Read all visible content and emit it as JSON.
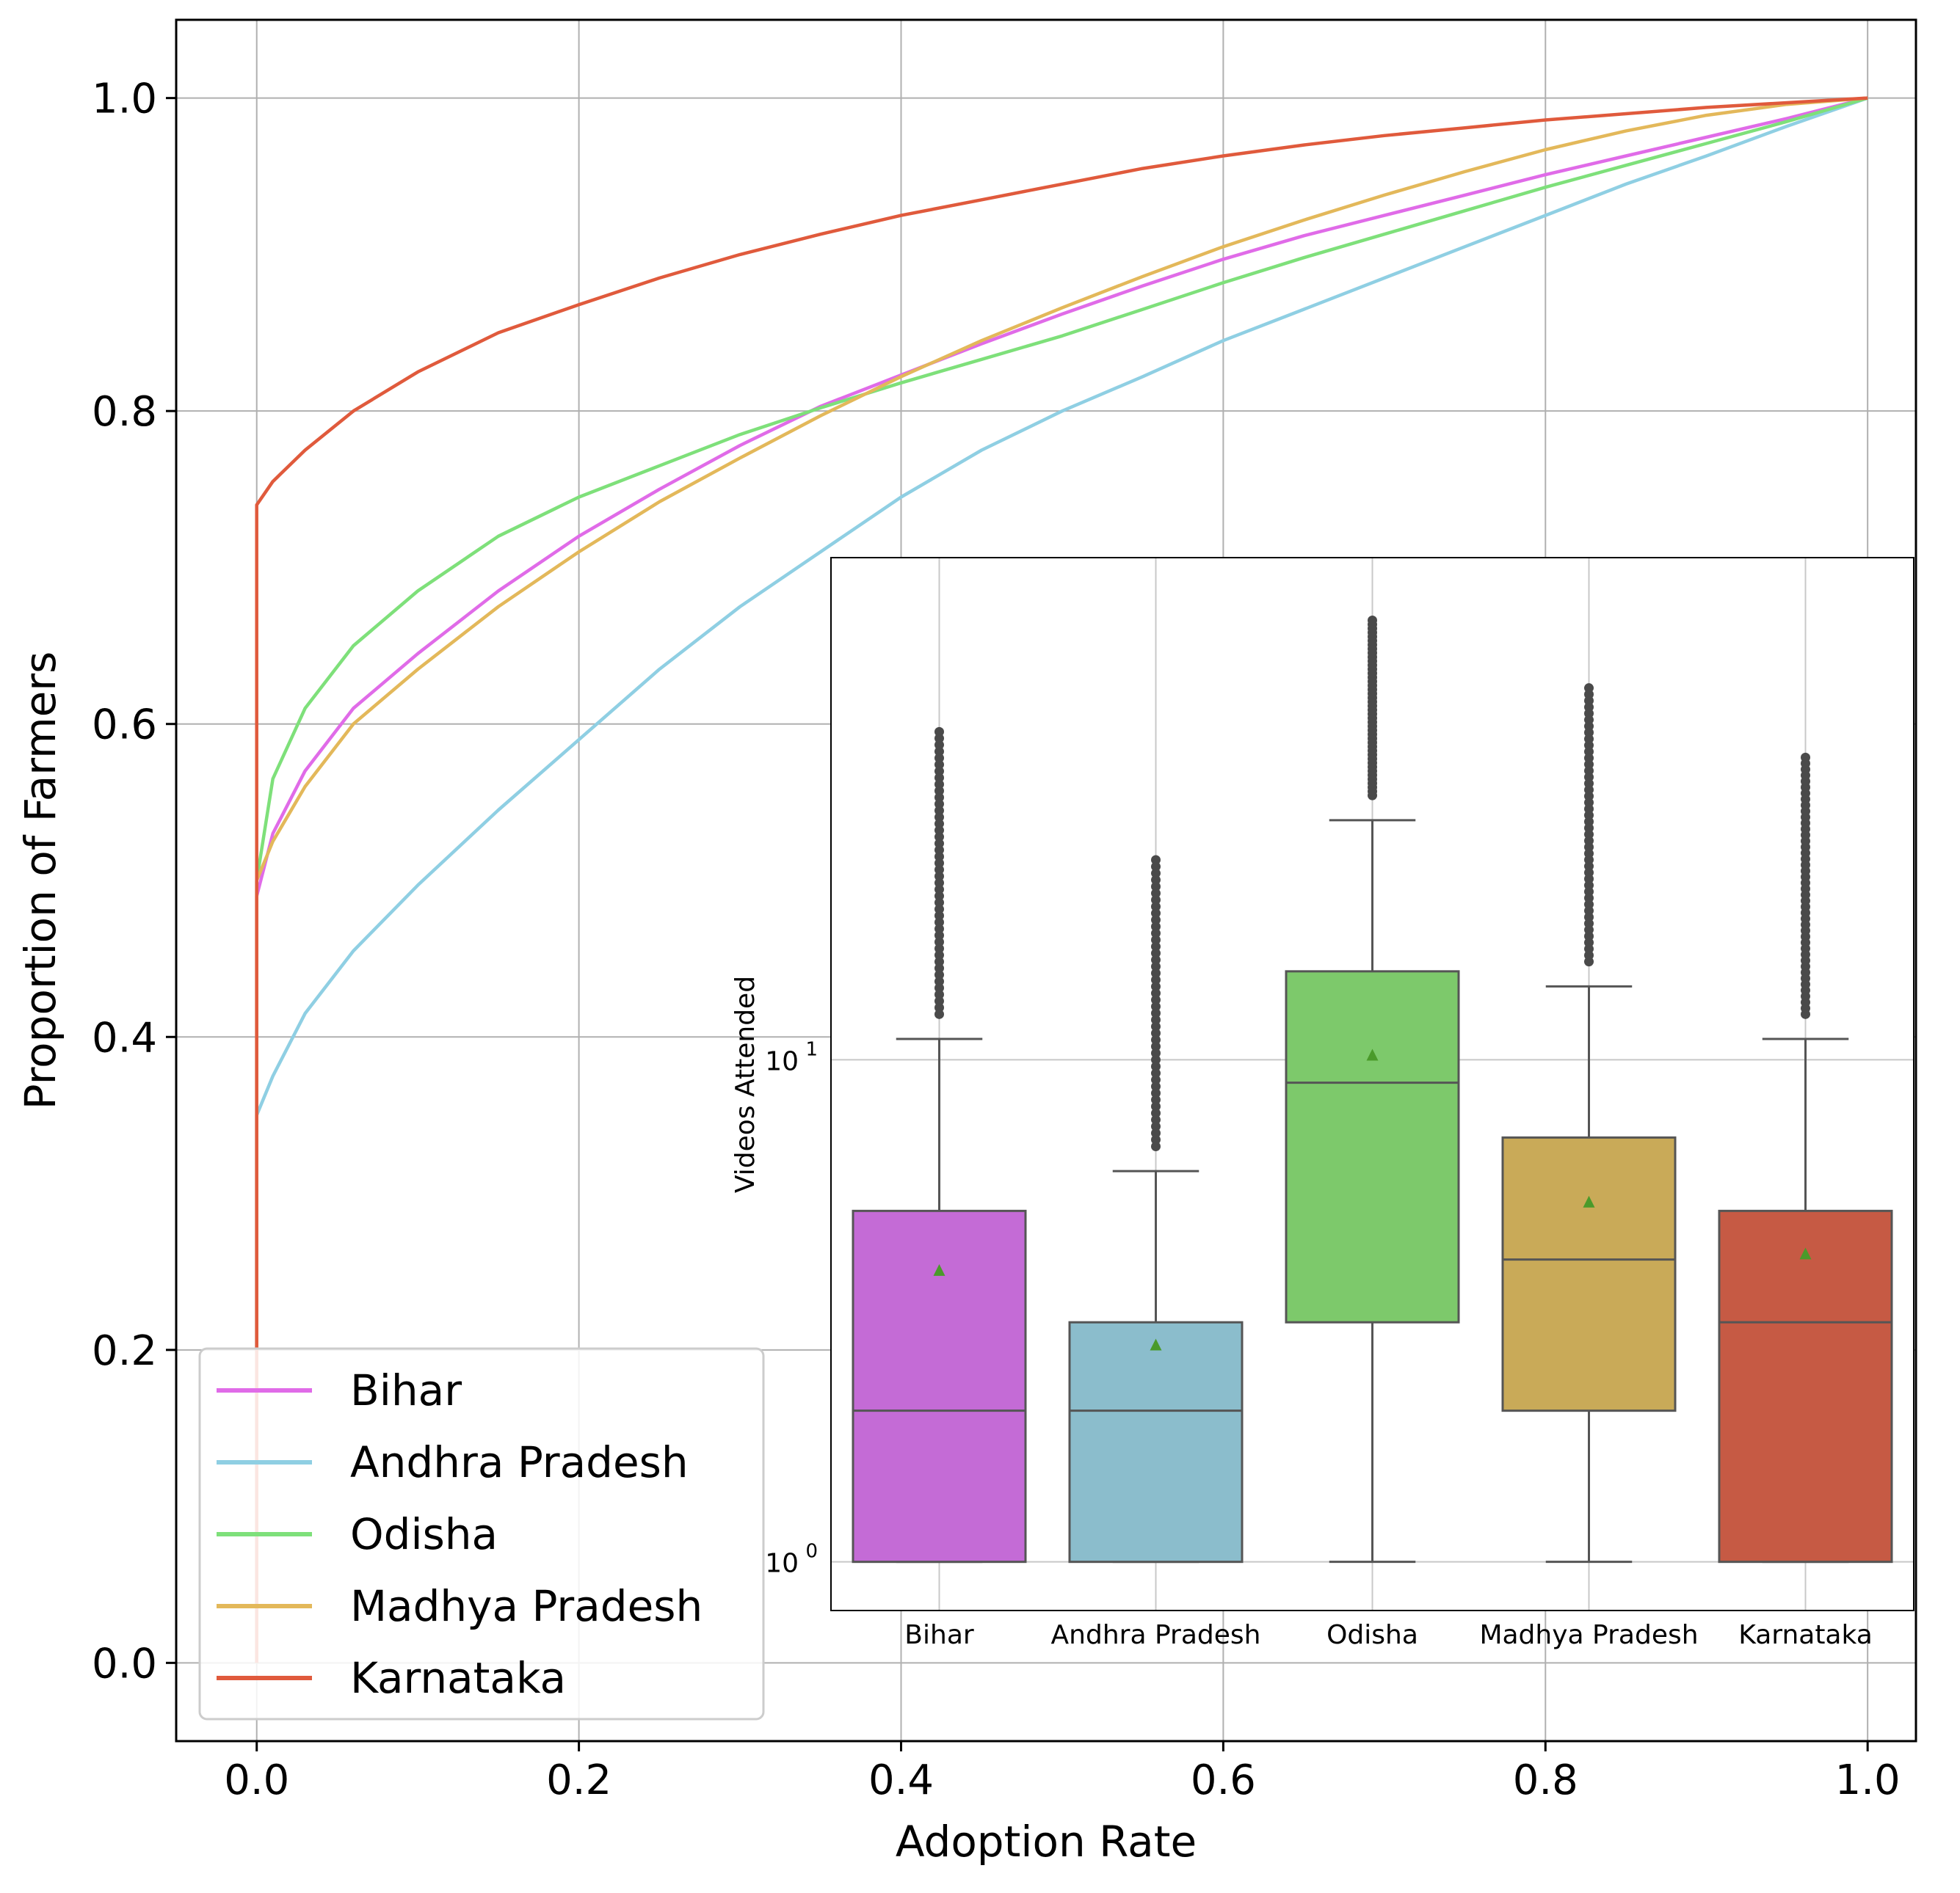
{
  "chart_data": [
    {
      "type": "line",
      "title": "",
      "xlabel": "Adoption Rate",
      "ylabel": "Proportion of Farmers",
      "xlim": [
        -0.05,
        1.03
      ],
      "ylim": [
        -0.05,
        1.05
      ],
      "xticks": [
        "0.0",
        "0.2",
        "0.4",
        "0.6",
        "0.8",
        "1.0"
      ],
      "yticks": [
        "0.0",
        "0.2",
        "0.4",
        "0.6",
        "0.8",
        "1.0"
      ],
      "grid": true,
      "legend_position": "lower-left",
      "series": [
        {
          "name": "Bihar",
          "color": "#e06be8",
          "points": [
            [
              0,
              0
            ],
            [
              0,
              0.49
            ],
            [
              0.01,
              0.53
            ],
            [
              0.03,
              0.57
            ],
            [
              0.06,
              0.61
            ],
            [
              0.1,
              0.645
            ],
            [
              0.15,
              0.685
            ],
            [
              0.2,
              0.72
            ],
            [
              0.25,
              0.75
            ],
            [
              0.3,
              0.778
            ],
            [
              0.35,
              0.803
            ],
            [
              0.4,
              0.823
            ],
            [
              0.45,
              0.843
            ],
            [
              0.5,
              0.862
            ],
            [
              0.55,
              0.88
            ],
            [
              0.6,
              0.897
            ],
            [
              0.65,
              0.912
            ],
            [
              0.7,
              0.925
            ],
            [
              0.75,
              0.938
            ],
            [
              0.8,
              0.951
            ],
            [
              0.85,
              0.963
            ],
            [
              0.9,
              0.975
            ],
            [
              0.95,
              0.987
            ],
            [
              1.0,
              1.0
            ]
          ]
        },
        {
          "name": "Andhra Pradesh",
          "color": "#8fcfe3",
          "points": [
            [
              0,
              0
            ],
            [
              0,
              0.35
            ],
            [
              0.01,
              0.375
            ],
            [
              0.03,
              0.415
            ],
            [
              0.06,
              0.455
            ],
            [
              0.1,
              0.497
            ],
            [
              0.15,
              0.545
            ],
            [
              0.2,
              0.59
            ],
            [
              0.25,
              0.635
            ],
            [
              0.3,
              0.675
            ],
            [
              0.35,
              0.71
            ],
            [
              0.4,
              0.745
            ],
            [
              0.45,
              0.775
            ],
            [
              0.5,
              0.8
            ],
            [
              0.55,
              0.822
            ],
            [
              0.6,
              0.845
            ],
            [
              0.65,
              0.865
            ],
            [
              0.7,
              0.885
            ],
            [
              0.75,
              0.905
            ],
            [
              0.8,
              0.925
            ],
            [
              0.85,
              0.945
            ],
            [
              0.9,
              0.963
            ],
            [
              0.95,
              0.982
            ],
            [
              1.0,
              1.0
            ]
          ]
        },
        {
          "name": "Odisha",
          "color": "#7ee07a",
          "points": [
            [
              0,
              0
            ],
            [
              0,
              0.5
            ],
            [
              0.01,
              0.565
            ],
            [
              0.03,
              0.61
            ],
            [
              0.06,
              0.65
            ],
            [
              0.1,
              0.685
            ],
            [
              0.15,
              0.72
            ],
            [
              0.2,
              0.745
            ],
            [
              0.25,
              0.765
            ],
            [
              0.3,
              0.785
            ],
            [
              0.35,
              0.802
            ],
            [
              0.4,
              0.818
            ],
            [
              0.45,
              0.833
            ],
            [
              0.5,
              0.848
            ],
            [
              0.55,
              0.865
            ],
            [
              0.6,
              0.882
            ],
            [
              0.65,
              0.898
            ],
            [
              0.7,
              0.913
            ],
            [
              0.75,
              0.928
            ],
            [
              0.8,
              0.943
            ],
            [
              0.85,
              0.957
            ],
            [
              0.9,
              0.971
            ],
            [
              0.95,
              0.985
            ],
            [
              1.0,
              1.0
            ]
          ]
        },
        {
          "name": "Madhya Pradesh",
          "color": "#e3b85a",
          "points": [
            [
              0,
              0
            ],
            [
              0,
              0.5
            ],
            [
              0.01,
              0.525
            ],
            [
              0.03,
              0.56
            ],
            [
              0.06,
              0.6
            ],
            [
              0.1,
              0.635
            ],
            [
              0.15,
              0.675
            ],
            [
              0.2,
              0.71
            ],
            [
              0.25,
              0.742
            ],
            [
              0.3,
              0.77
            ],
            [
              0.35,
              0.797
            ],
            [
              0.4,
              0.822
            ],
            [
              0.45,
              0.845
            ],
            [
              0.5,
              0.866
            ],
            [
              0.55,
              0.886
            ],
            [
              0.6,
              0.905
            ],
            [
              0.65,
              0.922
            ],
            [
              0.7,
              0.938
            ],
            [
              0.75,
              0.953
            ],
            [
              0.8,
              0.967
            ],
            [
              0.85,
              0.979
            ],
            [
              0.9,
              0.989
            ],
            [
              0.95,
              0.996
            ],
            [
              1.0,
              1.0
            ]
          ]
        },
        {
          "name": "Karnataka",
          "color": "#e05a3c",
          "points": [
            [
              0,
              0
            ],
            [
              0,
              0.74
            ],
            [
              0.01,
              0.755
            ],
            [
              0.03,
              0.775
            ],
            [
              0.06,
              0.8
            ],
            [
              0.1,
              0.825
            ],
            [
              0.15,
              0.85
            ],
            [
              0.2,
              0.868
            ],
            [
              0.25,
              0.885
            ],
            [
              0.3,
              0.9
            ],
            [
              0.35,
              0.913
            ],
            [
              0.4,
              0.925
            ],
            [
              0.45,
              0.935
            ],
            [
              0.5,
              0.945
            ],
            [
              0.55,
              0.955
            ],
            [
              0.6,
              0.963
            ],
            [
              0.65,
              0.97
            ],
            [
              0.7,
              0.976
            ],
            [
              0.75,
              0.981
            ],
            [
              0.8,
              0.986
            ],
            [
              0.85,
              0.99
            ],
            [
              0.9,
              0.994
            ],
            [
              0.95,
              0.997
            ],
            [
              1.0,
              1.0
            ]
          ]
        }
      ]
    },
    {
      "type": "box",
      "title": "",
      "xlabel": "",
      "ylabel": "Videos Attended",
      "yscale": "log",
      "ylim": [
        0.8,
        100
      ],
      "yticks": [
        {
          "value": 1,
          "base": "10",
          "exp": "0"
        },
        {
          "value": 10,
          "base": "10",
          "exp": "1"
        }
      ],
      "grid": true,
      "categories": [
        "Bihar",
        "Andhra Pradesh",
        "Odisha",
        "Madhya Pradesh",
        "Karnataka"
      ],
      "boxes": [
        {
          "name": "Bihar",
          "color": "#c46bd6",
          "whisker_low": 1,
          "q1": 1,
          "median": 2,
          "q3": 5,
          "whisker_high": 11,
          "mean": 3.8,
          "outlier_max": 45
        },
        {
          "name": "Andhra Pradesh",
          "color": "#8bbdcc",
          "whisker_low": 1,
          "q1": 1,
          "median": 2,
          "q3": 3,
          "whisker_high": 6,
          "mean": 2.7,
          "outlier_max": 25
        },
        {
          "name": "Odisha",
          "color": "#7dc96b",
          "whisker_low": 1,
          "q1": 3,
          "median": 9,
          "q3": 15,
          "whisker_high": 30,
          "mean": 10.2,
          "outlier_max": 75
        },
        {
          "name": "Madhya Pradesh",
          "color": "#c9aa58",
          "whisker_low": 1,
          "q1": 2,
          "median": 4,
          "q3": 7,
          "whisker_high": 14,
          "mean": 5.2,
          "outlier_max": 55
        },
        {
          "name": "Karnataka",
          "color": "#c65a44",
          "whisker_low": 1,
          "q1": 1,
          "median": 3,
          "q3": 5,
          "whisker_high": 11,
          "mean": 4.1,
          "outlier_max": 40
        }
      ]
    }
  ]
}
